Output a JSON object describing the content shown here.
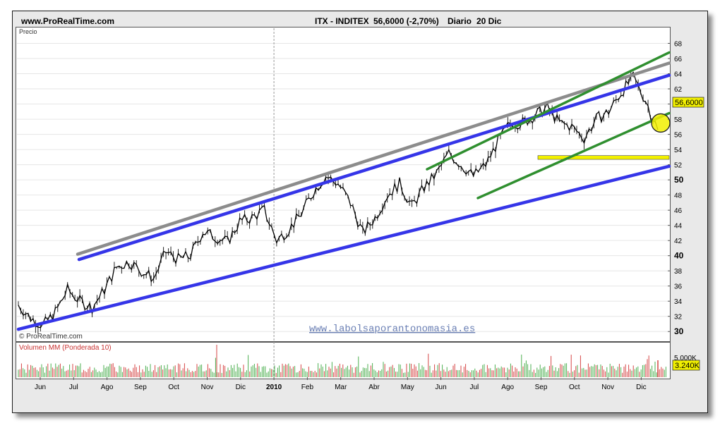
{
  "header": {
    "site": "www.ProRealTime.com",
    "symbol": "ITX - INDITEX",
    "quote": "56,6000 (-2,70%)",
    "period": "Diario",
    "date": "20 Dic"
  },
  "price_panel": {
    "label": "Precio",
    "copyright": "© ProRealTime.com",
    "watermark": "www.labolsaporantonomasia.es",
    "last_price_tag": "56,6000"
  },
  "volume_panel": {
    "label": "Volumen MM (Ponderada 10)",
    "scale_label": "5.000K",
    "last_volume_tag": "3.240K"
  },
  "chart_data": [
    {
      "type": "line",
      "title": "ITX - INDITEX",
      "ylabel": "Precio",
      "ylim": [
        29,
        70
      ],
      "y_ticks": [
        30,
        32,
        34,
        36,
        38,
        40,
        42,
        44,
        46,
        48,
        50,
        52,
        54,
        56,
        58,
        60,
        62,
        64,
        66,
        68
      ],
      "x_labels": [
        "Jun",
        "Jul",
        "Ago",
        "Sep",
        "Oct",
        "Nov",
        "Dic",
        "2010",
        "Feb",
        "Mar",
        "Abr",
        "May",
        "Jun",
        "Jul",
        "Ago",
        "Sep",
        "Oct",
        "Nov",
        "Dic"
      ],
      "last_value": 56.6,
      "change_pct": -2.7,
      "grid": true,
      "series": [
        {
          "values": [
            33.5,
            31.8,
            30.8,
            32.5,
            35.5,
            34.0,
            33.2,
            35.5,
            38.5,
            39.2,
            38.0,
            37.0,
            40.5,
            39.5,
            40.0,
            43.2,
            42.5,
            41.8,
            44.5,
            45.0,
            46.0,
            42.0,
            43.5,
            45.5,
            48.5,
            50.5,
            49.5,
            47.0,
            43.0,
            45.0,
            48.0,
            49.5,
            46.5,
            49.0,
            50.8,
            53.5,
            52.0,
            50.5,
            52.0,
            55.0,
            57.5,
            57.5,
            58.5,
            59.5,
            57.5,
            57.0,
            55.5,
            58.0,
            59.0,
            61.5,
            63.5,
            60.5,
            56.6
          ]
        }
      ],
      "trendlines": [
        {
          "name": "",
          "color": "#3535e8",
          "from": [
            "Jun",
            30.3
          ],
          "to": [
            "Dic",
            51.8
          ]
        },
        {
          "name": "",
          "color": "#3535e8",
          "from": [
            "Jul",
            39.5
          ],
          "to": [
            "Dic",
            63.8
          ]
        },
        {
          "name": "",
          "color": "#8c8c8c",
          "from": [
            "Jul",
            40.2
          ],
          "to": [
            "Dic",
            65.4
          ]
        },
        {
          "name": "",
          "color": "#2f8f2f",
          "from": [
            "Jun",
            51.4
          ],
          "to": [
            "Dic",
            66.8
          ]
        },
        {
          "name": "",
          "color": "#2f8f2f",
          "from": [
            "Jul",
            47.6
          ],
          "to": [
            "Dic",
            58.8
          ]
        }
      ],
      "support_band": {
        "low": 52.7,
        "high": 53.2,
        "from": "Sep",
        "color": "#f2f000"
      }
    },
    {
      "type": "bar",
      "title": "Volumen MM (Ponderada 10)",
      "y_ticks": [
        "5.000K"
      ],
      "last_value_label": "3.240K"
    }
  ]
}
